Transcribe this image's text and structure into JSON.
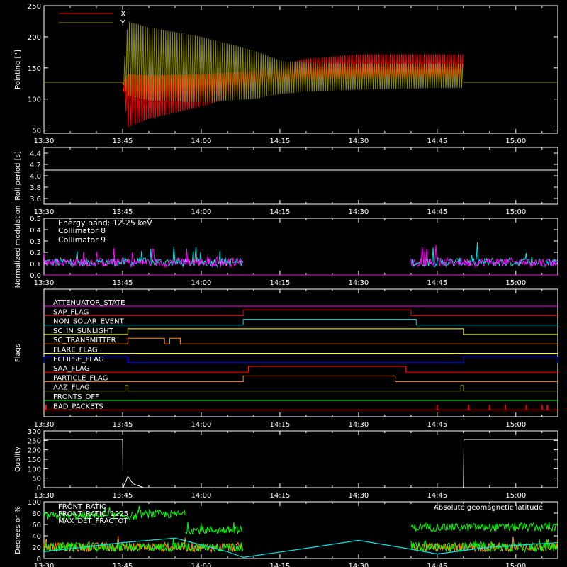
{
  "time_ticks": [
    "13:30",
    "13:45",
    "14:00",
    "14:15",
    "14:30",
    "14:45",
    "15:00"
  ],
  "chart_data": [
    {
      "type": "line",
      "ylabel": "Pointing [\"]",
      "ylim": [
        45,
        250
      ],
      "yticks": [
        50,
        100,
        150,
        200,
        250
      ],
      "legend": "top-left",
      "series": [
        {
          "name": "X",
          "color": "#ff0000",
          "x": [
            "13:30",
            "13:45",
            "13:46",
            "13:50",
            "14:00",
            "14:10",
            "14:15",
            "14:20",
            "14:30",
            "14:40",
            "14:50"
          ],
          "y_low": [
            127,
            127,
            55,
            68,
            88,
            112,
            124,
            130,
            132,
            132,
            132
          ],
          "y_high": [
            127,
            127,
            140,
            138,
            140,
            145,
            155,
            165,
            172,
            172,
            172
          ]
        },
        {
          "name": "Y",
          "color": "#8b8b00",
          "x": [
            "13:30",
            "13:45",
            "13:46",
            "13:50",
            "14:00",
            "14:10",
            "14:15",
            "14:20",
            "14:30",
            "14:40",
            "14:50"
          ],
          "y_low": [
            127,
            127,
            105,
            98,
            95,
            100,
            108,
            112,
            115,
            117,
            118
          ],
          "y_high": [
            127,
            127,
            225,
            215,
            200,
            178,
            162,
            158,
            157,
            157,
            157
          ]
        }
      ],
      "post_value": 127
    },
    {
      "type": "line",
      "ylabel": "Roll period [s]",
      "ylim": [
        3.5,
        4.5
      ],
      "yticks": [
        "3.6",
        "3.8",
        "4.0",
        "4.2",
        "4.4"
      ],
      "series": [
        {
          "name": "",
          "color": "#ffffff",
          "x": [
            "13:30",
            "15:08"
          ],
          "y": [
            4.1,
            4.1
          ]
        }
      ]
    },
    {
      "type": "line",
      "ylabel": "Normalized modulation",
      "ylim": [
        0.0,
        0.5
      ],
      "yticks": [
        "0.0",
        "0.1",
        "0.2",
        "0.3",
        "0.4",
        "0.5"
      ],
      "legend_title": "Energy band: 12-25 keV",
      "series": [
        {
          "name": "Collimator 8",
          "color": "#00e5e5",
          "baseline": 0.1,
          "active": [
            [
              "13:30",
              "14:08"
            ],
            [
              "14:40",
              "15:08"
            ]
          ]
        },
        {
          "name": "Collimator 9",
          "color": "#ff00ff",
          "baseline": 0.1,
          "active": [
            [
              "13:30",
              "14:08"
            ],
            [
              "14:40",
              "15:08"
            ]
          ]
        }
      ]
    },
    {
      "type": "line",
      "ylabel": "Flags",
      "series": [
        {
          "name": "ATTENUATOR_STATE",
          "color": "#ff00ff",
          "high": []
        },
        {
          "name": "SAP_FLAG",
          "color": "#ff0000",
          "high": [
            [
              "14:08",
              "14:40"
            ]
          ]
        },
        {
          "name": "NON_SOLAR_EVENT",
          "color": "#00e5e5",
          "high": [
            [
              "14:08",
              "14:41"
            ]
          ]
        },
        {
          "name": "SC_IN_SUNLIGHT",
          "color": "#ffff00",
          "high": [
            [
              "13:46",
              "14:50"
            ]
          ]
        },
        {
          "name": "SC_TRANSMITTER",
          "color": "#ff8c00",
          "high": [
            [
              "13:46",
              "13:53"
            ],
            [
              "13:54",
              "13:56"
            ]
          ]
        },
        {
          "name": "FLARE_FLAG",
          "color": "#ffff00",
          "high": []
        },
        {
          "name": "ECLIPSE_FLAG",
          "color": "#0000ff",
          "high": [
            [
              "13:30",
              "13:46"
            ],
            [
              "14:50",
              "15:08"
            ]
          ]
        },
        {
          "name": "SAA_FLAG",
          "color": "#ff0000",
          "high": [
            [
              "14:09",
              "14:39"
            ]
          ]
        },
        {
          "name": "PARTICLE_FLAG",
          "color": "#ff8c00",
          "high": [
            [
              "14:08",
              "14:37"
            ]
          ]
        },
        {
          "name": "AAZ_FLAG",
          "color": "#8b8b00",
          "high": [
            [
              "13:45.5",
              "13:46"
            ],
            [
              "14:49.5",
              "14:50"
            ]
          ]
        },
        {
          "name": "FRONTS_OFF",
          "color": "#00ff00",
          "high": []
        },
        {
          "name": "BAD_PACKETS",
          "color": "#ff0000",
          "high": [],
          "spikes": [
            "13:30",
            "14:45",
            "14:51",
            "14:55",
            "14:58",
            "15:02",
            "15:05",
            "15:06"
          ]
        }
      ]
    },
    {
      "type": "line",
      "ylabel": "Quality",
      "ylim": [
        0,
        300
      ],
      "yticks": [
        0,
        50,
        100,
        150,
        200,
        250,
        300
      ],
      "series": [
        {
          "name": "",
          "color": "#ffffff",
          "x": [
            "13:30",
            "13:45",
            "13:45.1",
            "13:46",
            "13:47",
            "13:48",
            "13:49",
            "14:50",
            "14:50.1",
            "15:08"
          ],
          "y": [
            255,
            255,
            0,
            60,
            20,
            10,
            0,
            0,
            255,
            255
          ]
        }
      ]
    },
    {
      "type": "line",
      "ylabel": "Degrees or %",
      "ylim": [
        0,
        100
      ],
      "yticks": [
        0,
        20,
        40,
        60,
        80,
        100
      ],
      "legend": "top-left",
      "series": [
        {
          "name": "FRONT_RATIO",
          "color": "#00ff00",
          "levels": [
            [
              "13:30",
              "13:48",
              75
            ],
            [
              "13:48",
              "13:57",
              78
            ],
            [
              "13:57",
              "14:08",
              50
            ],
            [
              "14:40",
              "15:08",
              55
            ]
          ]
        },
        {
          "name": "FRONT_RATIO_1225",
          "color": "#00ff00",
          "levels": [
            [
              "13:30",
              "14:08",
              20
            ],
            [
              "14:40",
              "15:08",
              20
            ]
          ]
        },
        {
          "name": "MAX_DET_FRACTOT",
          "color": "#ff8c00",
          "levels": [
            [
              "13:30",
              "14:08",
              20
            ],
            [
              "14:40",
              "15:08",
              20
            ]
          ]
        },
        {
          "name": "Absolute geomagnetic latitude",
          "color": "#00e5e5",
          "x": [
            "13:30",
            "13:45",
            "13:55",
            "14:05",
            "14:08",
            "14:20",
            "14:30",
            "14:39",
            "14:45",
            "14:55",
            "15:08"
          ],
          "y": [
            12,
            28,
            36,
            12,
            2,
            18,
            32,
            18,
            8,
            20,
            28
          ]
        }
      ]
    }
  ]
}
